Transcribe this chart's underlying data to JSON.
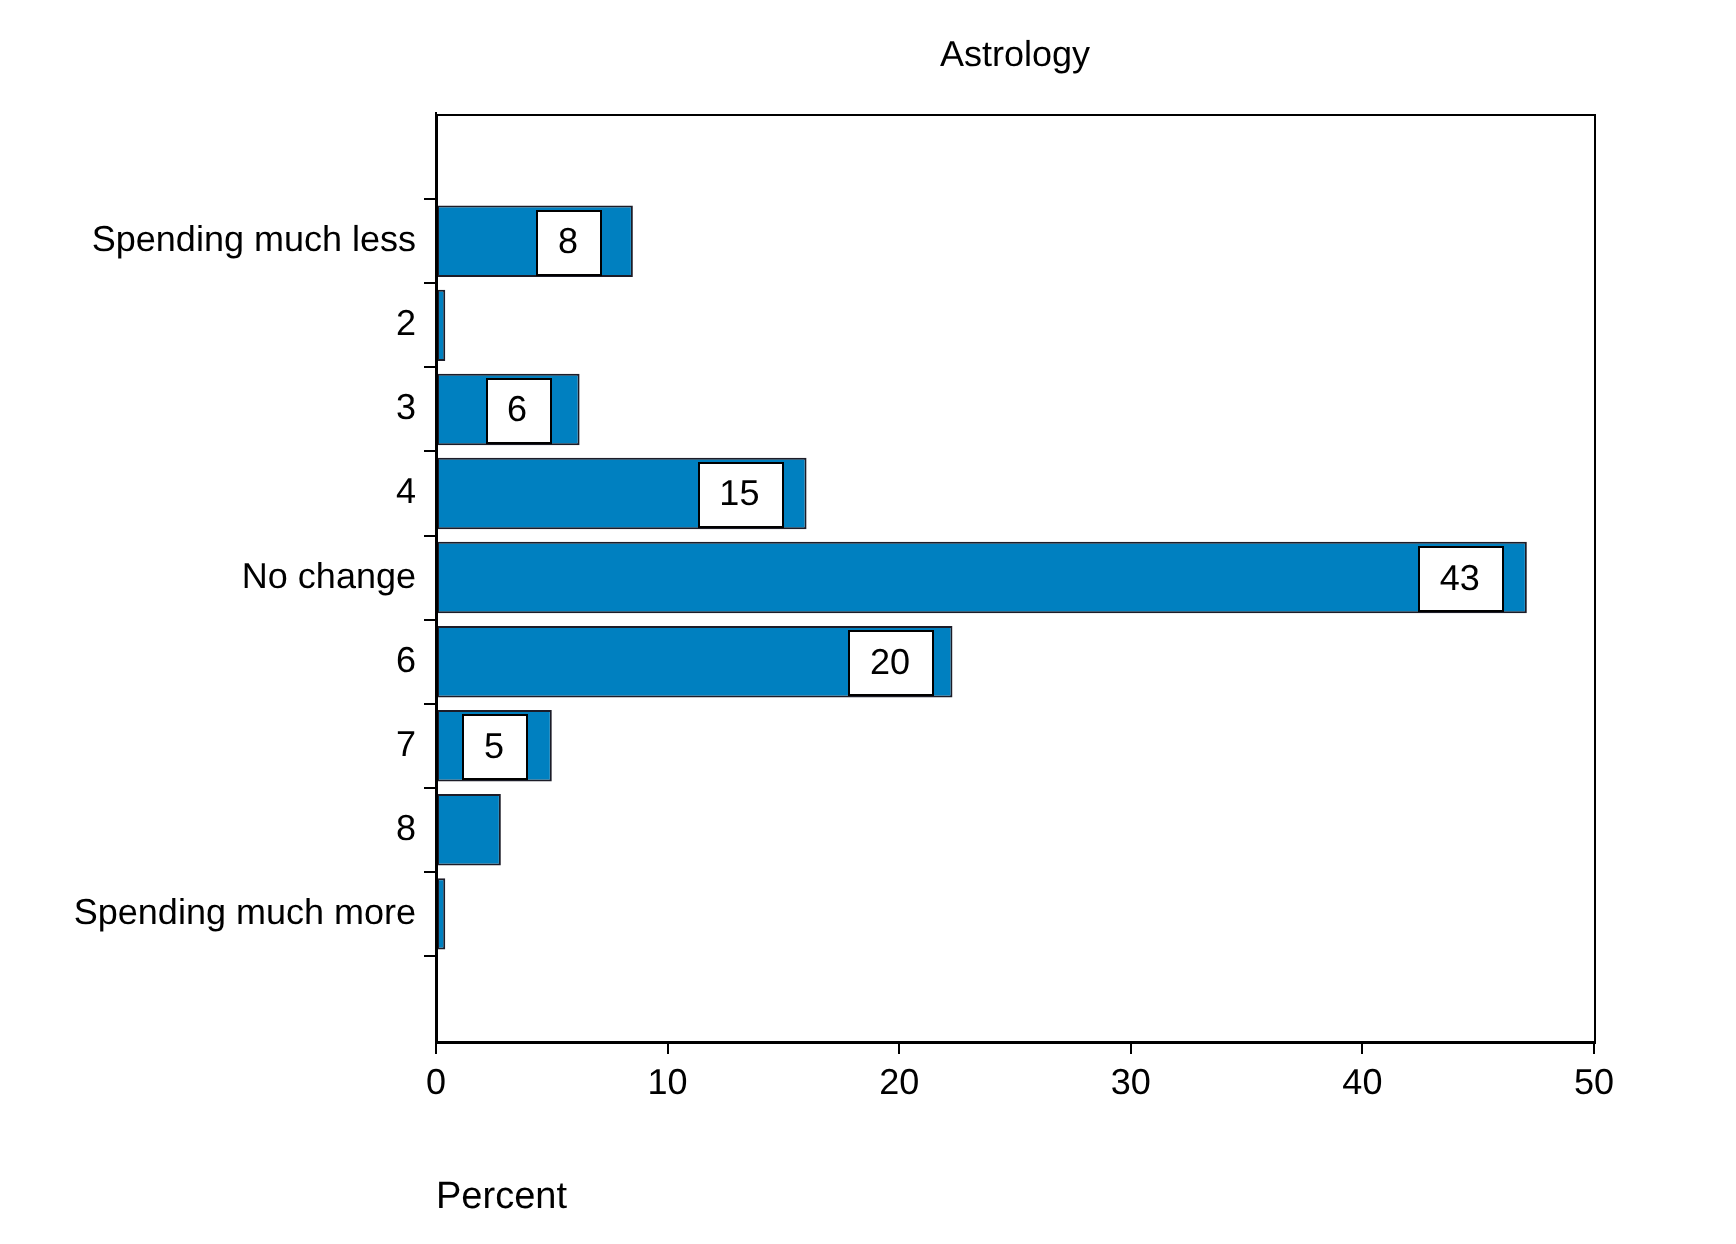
{
  "chart_data": {
    "type": "bar",
    "title": "Astrology",
    "xlabel": "Percent",
    "orientation": "horizontal",
    "categories": [
      "Spending much less",
      "2",
      "3",
      "4",
      "No change",
      "6",
      "7",
      "8",
      "Spending much more"
    ],
    "values": [
      8.5,
      0.4,
      6.2,
      16.0,
      47.1,
      22.3,
      5.0,
      2.8,
      0.4
    ],
    "annotations": [
      {
        "text": "8",
        "x": 5.7,
        "y": "Spending much less"
      },
      {
        "text": "6",
        "x": 3.5,
        "y": "3"
      },
      {
        "text": "15",
        "x": 13.1,
        "y": "4"
      },
      {
        "text": "43",
        "x": 44.2,
        "y": "No change"
      },
      {
        "text": "20",
        "x": 19.6,
        "y": "6"
      },
      {
        "text": "5",
        "x": 2.5,
        "y": "7"
      }
    ],
    "color": "#0080c0",
    "xlim": [
      0,
      50
    ],
    "xticks": [
      0,
      10,
      20,
      30,
      40,
      50
    ]
  }
}
